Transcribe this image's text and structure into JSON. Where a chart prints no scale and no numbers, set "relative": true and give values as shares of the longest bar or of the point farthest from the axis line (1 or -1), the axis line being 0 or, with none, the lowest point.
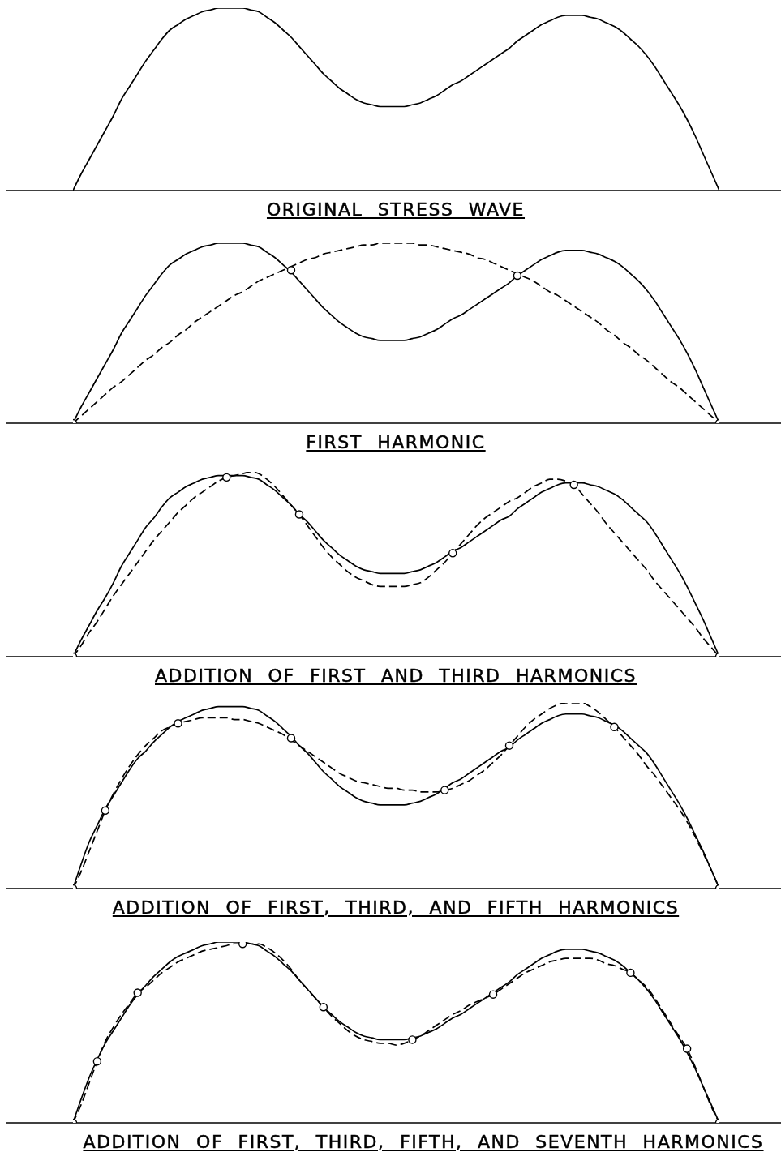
{
  "chart_data": [
    {
      "type": "line",
      "relative": true,
      "title": "ORIGINAL STRESS WAVE",
      "categories": [
        null,
        null,
        null,
        null,
        null,
        null,
        null,
        null,
        null,
        null,
        null,
        null,
        null,
        null,
        null,
        null,
        null,
        null,
        null,
        null,
        null,
        null,
        null,
        null,
        null,
        null,
        null,
        null,
        null,
        null,
        null,
        null,
        null,
        null,
        null,
        null,
        null,
        null,
        null,
        null,
        null,
        null,
        null,
        null,
        null,
        null,
        null,
        null,
        null,
        null,
        null,
        null,
        null,
        null,
        null,
        null,
        null,
        null,
        null,
        null,
        null,
        null,
        null,
        null,
        null,
        null,
        null,
        null,
        null,
        null,
        null,
        null,
        null,
        null,
        null,
        null,
        null,
        null,
        null,
        null,
        null
      ],
      "series": [
        {
          "line_style": "solid",
          "color": "#000000",
          "values": [
            0,
            0.09,
            0.17,
            0.25,
            0.33,
            0.41,
            0.5,
            0.57,
            0.64,
            0.71,
            0.77,
            0.83,
            0.88,
            0.91,
            0.94,
            0.96,
            0.98,
            0.99,
            1,
            1,
            1,
            1,
            0.99,
            0.98,
            0.95,
            0.92,
            0.88,
            0.84,
            0.79,
            0.74,
            0.69,
            0.64,
            0.6,
            0.56,
            0.53,
            0.5,
            0.48,
            0.47,
            0.46,
            0.46,
            0.46,
            0.46,
            0.47,
            0.48,
            0.5,
            0.52,
            0.55,
            0.58,
            0.6,
            0.63,
            0.66,
            0.69,
            0.72,
            0.75,
            0.78,
            0.82,
            0.85,
            0.88,
            0.91,
            0.93,
            0.95,
            0.96,
            0.96,
            0.96,
            0.95,
            0.94,
            0.92,
            0.9,
            0.87,
            0.83,
            0.79,
            0.74,
            0.68,
            0.61,
            0.54,
            0.47,
            0.39,
            0.3,
            0.2,
            0.1,
            0
          ]
        }
      ]
    },
    {
      "type": "line",
      "relative": true,
      "title": "FIRST HARMONIC",
      "categories": [
        null,
        null,
        null,
        null,
        null,
        null,
        null,
        null,
        null,
        null,
        null,
        null,
        null,
        null,
        null,
        null,
        null,
        null,
        null,
        null,
        null,
        null,
        null,
        null,
        null,
        null,
        null,
        null,
        null,
        null,
        null,
        null,
        null,
        null,
        null,
        null,
        null,
        null,
        null,
        null,
        null,
        null,
        null,
        null,
        null,
        null,
        null,
        null,
        null,
        null,
        null,
        null,
        null,
        null,
        null,
        null,
        null,
        null,
        null,
        null,
        null,
        null,
        null,
        null,
        null,
        null,
        null,
        null,
        null,
        null,
        null,
        null,
        null,
        null,
        null,
        null,
        null,
        null,
        null,
        null,
        null
      ],
      "series": [
        {
          "line_style": "solid",
          "color": "#000000",
          "values": [
            0,
            0.09,
            0.17,
            0.25,
            0.33,
            0.41,
            0.5,
            0.57,
            0.64,
            0.71,
            0.77,
            0.83,
            0.88,
            0.91,
            0.94,
            0.96,
            0.98,
            0.99,
            1,
            1,
            1,
            1,
            0.99,
            0.98,
            0.95,
            0.92,
            0.88,
            0.84,
            0.79,
            0.74,
            0.69,
            0.64,
            0.6,
            0.56,
            0.53,
            0.5,
            0.48,
            0.47,
            0.46,
            0.46,
            0.46,
            0.46,
            0.47,
            0.48,
            0.5,
            0.52,
            0.55,
            0.58,
            0.6,
            0.63,
            0.66,
            0.69,
            0.72,
            0.75,
            0.78,
            0.82,
            0.85,
            0.88,
            0.91,
            0.93,
            0.95,
            0.96,
            0.96,
            0.96,
            0.95,
            0.94,
            0.92,
            0.9,
            0.87,
            0.83,
            0.79,
            0.74,
            0.68,
            0.61,
            0.54,
            0.47,
            0.39,
            0.3,
            0.2,
            0.1,
            0
          ]
        },
        {
          "line_style": "dashed",
          "color": "#000000",
          "values": [
            0,
            0.04,
            0.08,
            0.12,
            0.16,
            0.2,
            0.23,
            0.27,
            0.31,
            0.35,
            0.38,
            0.42,
            0.45,
            0.49,
            0.52,
            0.56,
            0.59,
            0.62,
            0.65,
            0.68,
            0.71,
            0.73,
            0.76,
            0.79,
            0.81,
            0.83,
            0.85,
            0.87,
            0.89,
            0.91,
            0.92,
            0.94,
            0.95,
            0.96,
            0.97,
            0.98,
            0.99,
            0.99,
            1,
            1,
            1,
            1,
            1,
            0.99,
            0.99,
            0.98,
            0.97,
            0.96,
            0.95,
            0.94,
            0.92,
            0.91,
            0.89,
            0.87,
            0.85,
            0.83,
            0.81,
            0.79,
            0.76,
            0.73,
            0.71,
            0.68,
            0.65,
            0.62,
            0.59,
            0.56,
            0.52,
            0.49,
            0.45,
            0.42,
            0.38,
            0.35,
            0.31,
            0.27,
            0.23,
            0.2,
            0.16,
            0.12,
            0.08,
            0.04,
            0
          ]
        },
        {
          "type": "scatter",
          "marker": "circle",
          "color": "#000000",
          "values": [
            0,
            null,
            null,
            null,
            null,
            null,
            null,
            null,
            null,
            null,
            null,
            null,
            null,
            null,
            null,
            null,
            null,
            null,
            null,
            null,
            null,
            null,
            null,
            null,
            null,
            null,
            null,
            0.85,
            null,
            null,
            null,
            null,
            null,
            null,
            null,
            null,
            null,
            null,
            null,
            null,
            null,
            null,
            null,
            null,
            null,
            null,
            null,
            null,
            null,
            null,
            null,
            null,
            null,
            null,
            null,
            0.82,
            null,
            null,
            null,
            null,
            null,
            null,
            null,
            null,
            null,
            null,
            null,
            null,
            null,
            null,
            null,
            null,
            null,
            null,
            null,
            null,
            null,
            null,
            null,
            null,
            0
          ]
        }
      ]
    },
    {
      "type": "line",
      "relative": true,
      "title": "ADDITION OF FIRST AND THIRD HARMONICS",
      "categories": [
        null,
        null,
        null,
        null,
        null,
        null,
        null,
        null,
        null,
        null,
        null,
        null,
        null,
        null,
        null,
        null,
        null,
        null,
        null,
        null,
        null,
        null,
        null,
        null,
        null,
        null,
        null,
        null,
        null,
        null,
        null,
        null,
        null,
        null,
        null,
        null,
        null,
        null,
        null,
        null,
        null,
        null,
        null,
        null,
        null,
        null,
        null,
        null,
        null,
        null,
        null,
        null,
        null,
        null,
        null,
        null,
        null,
        null,
        null,
        null,
        null,
        null,
        null,
        null,
        null,
        null,
        null,
        null,
        null,
        null,
        null,
        null,
        null,
        null,
        null,
        null,
        null,
        null,
        null,
        null,
        null
      ],
      "series": [
        {
          "line_style": "solid",
          "color": "#000000",
          "values": [
            0,
            0.09,
            0.17,
            0.25,
            0.32,
            0.4,
            0.49,
            0.56,
            0.63,
            0.7,
            0.75,
            0.81,
            0.86,
            0.89,
            0.92,
            0.94,
            0.96,
            0.97,
            0.98,
            0.98,
            0.98,
            0.98,
            0.97,
            0.96,
            0.93,
            0.9,
            0.86,
            0.82,
            0.77,
            0.73,
            0.68,
            0.63,
            0.59,
            0.55,
            0.52,
            0.49,
            0.47,
            0.46,
            0.45,
            0.45,
            0.45,
            0.45,
            0.46,
            0.47,
            0.49,
            0.51,
            0.54,
            0.57,
            0.59,
            0.62,
            0.65,
            0.68,
            0.71,
            0.74,
            0.76,
            0.8,
            0.83,
            0.86,
            0.89,
            0.91,
            0.93,
            0.94,
            0.94,
            0.94,
            0.93,
            0.92,
            0.9,
            0.88,
            0.85,
            0.81,
            0.77,
            0.73,
            0.67,
            0.6,
            0.53,
            0.46,
            0.38,
            0.29,
            0.2,
            0.1,
            0
          ]
        },
        {
          "line_style": "dashed",
          "color": "#000000",
          "values": [
            0,
            0.06,
            0.13,
            0.19,
            0.26,
            0.33,
            0.39,
            0.45,
            0.51,
            0.57,
            0.63,
            0.68,
            0.73,
            0.78,
            0.82,
            0.86,
            0.89,
            0.92,
            0.95,
            0.97,
            0.98,
            0.99,
            1,
            0.99,
            0.96,
            0.92,
            0.87,
            0.82,
            0.77,
            0.71,
            0.65,
            0.59,
            0.54,
            0.5,
            0.46,
            0.43,
            0.41,
            0.39,
            0.38,
            0.38,
            0.38,
            0.38,
            0.39,
            0.4,
            0.43,
            0.47,
            0.51,
            0.56,
            0.61,
            0.66,
            0.71,
            0.75,
            0.78,
            0.81,
            0.84,
            0.86,
            0.89,
            0.92,
            0.94,
            0.96,
            0.96,
            0.95,
            0.93,
            0.88,
            0.83,
            0.78,
            0.72,
            0.67,
            0.62,
            0.57,
            0.52,
            0.47,
            0.41,
            0.36,
            0.31,
            0.26,
            0.21,
            0.16,
            0.1,
            0.05,
            0
          ]
        },
        {
          "type": "scatter",
          "marker": "circle",
          "color": "#000000",
          "values": [
            0,
            null,
            null,
            null,
            null,
            null,
            null,
            null,
            null,
            null,
            null,
            null,
            null,
            null,
            null,
            null,
            null,
            null,
            null,
            0.97,
            null,
            null,
            null,
            null,
            null,
            null,
            null,
            null,
            0.77,
            null,
            null,
            null,
            null,
            null,
            null,
            null,
            null,
            null,
            null,
            null,
            null,
            null,
            null,
            null,
            null,
            null,
            null,
            0.56,
            null,
            null,
            null,
            null,
            null,
            null,
            null,
            null,
            null,
            null,
            null,
            null,
            null,
            null,
            0.93,
            null,
            null,
            null,
            null,
            null,
            null,
            null,
            null,
            null,
            null,
            null,
            null,
            null,
            null,
            null,
            null,
            null,
            0
          ]
        }
      ]
    },
    {
      "type": "line",
      "relative": true,
      "title": "ADDITION OF FIRST, THIRD, AND FIFTH HARMONICS",
      "categories": [
        null,
        null,
        null,
        null,
        null,
        null,
        null,
        null,
        null,
        null,
        null,
        null,
        null,
        null,
        null,
        null,
        null,
        null,
        null,
        null,
        null,
        null,
        null,
        null,
        null,
        null,
        null,
        null,
        null,
        null,
        null,
        null,
        null,
        null,
        null,
        null,
        null,
        null,
        null,
        null,
        null,
        null,
        null,
        null,
        null,
        null,
        null,
        null,
        null,
        null,
        null,
        null,
        null,
        null,
        null,
        null,
        null,
        null,
        null,
        null,
        null,
        null,
        null,
        null,
        null,
        null,
        null,
        null,
        null,
        null,
        null,
        null,
        null,
        null,
        null,
        null,
        null,
        null,
        null,
        null,
        null
      ],
      "series": [
        {
          "line_style": "solid",
          "color": "#000000",
          "values": [
            0,
            0.13,
            0.25,
            0.34,
            0.43,
            0.5,
            0.57,
            0.64,
            0.7,
            0.74,
            0.79,
            0.83,
            0.87,
            0.9,
            0.92,
            0.94,
            0.96,
            0.97,
            0.98,
            0.98,
            0.98,
            0.98,
            0.97,
            0.96,
            0.93,
            0.9,
            0.86,
            0.82,
            0.77,
            0.73,
            0.68,
            0.63,
            0.59,
            0.55,
            0.52,
            0.49,
            0.47,
            0.46,
            0.45,
            0.45,
            0.45,
            0.45,
            0.46,
            0.47,
            0.49,
            0.51,
            0.54,
            0.57,
            0.59,
            0.62,
            0.65,
            0.68,
            0.71,
            0.74,
            0.76,
            0.8,
            0.83,
            0.86,
            0.89,
            0.91,
            0.93,
            0.94,
            0.94,
            0.94,
            0.93,
            0.92,
            0.9,
            0.88,
            0.85,
            0.81,
            0.77,
            0.73,
            0.67,
            0.6,
            0.53,
            0.46,
            0.38,
            0.29,
            0.2,
            0.1,
            0
          ]
        },
        {
          "line_style": "dashed",
          "color": "#000000",
          "values": [
            0,
            0.09,
            0.2,
            0.31,
            0.42,
            0.51,
            0.59,
            0.66,
            0.72,
            0.77,
            0.81,
            0.85,
            0.87,
            0.89,
            0.9,
            0.91,
            0.92,
            0.92,
            0.92,
            0.92,
            0.91,
            0.91,
            0.9,
            0.89,
            0.87,
            0.85,
            0.83,
            0.8,
            0.77,
            0.74,
            0.71,
            0.68,
            0.65,
            0.62,
            0.6,
            0.58,
            0.57,
            0.56,
            0.55,
            0.54,
            0.54,
            0.53,
            0.53,
            0.52,
            0.52,
            0.52,
            0.53,
            0.54,
            0.56,
            0.58,
            0.61,
            0.64,
            0.68,
            0.72,
            0.77,
            0.82,
            0.87,
            0.91,
            0.94,
            0.97,
            0.99,
            1,
            1,
            1,
            0.98,
            0.95,
            0.91,
            0.87,
            0.82,
            0.77,
            0.72,
            0.66,
            0.61,
            0.55,
            0.49,
            0.43,
            0.36,
            0.28,
            0.19,
            0.1,
            0
          ]
        },
        {
          "type": "scatter",
          "marker": "circle",
          "color": "#000000",
          "values": [
            0,
            null,
            null,
            null,
            0.42,
            null,
            null,
            null,
            null,
            null,
            null,
            null,
            null,
            0.89,
            null,
            null,
            null,
            null,
            null,
            null,
            null,
            null,
            null,
            null,
            null,
            null,
            null,
            0.81,
            null,
            null,
            null,
            null,
            null,
            null,
            null,
            null,
            null,
            null,
            null,
            null,
            null,
            null,
            null,
            null,
            null,
            null,
            0.53,
            null,
            null,
            null,
            null,
            null,
            null,
            null,
            0.77,
            null,
            null,
            null,
            null,
            null,
            null,
            null,
            null,
            null,
            null,
            null,
            null,
            0.87,
            null,
            null,
            null,
            null,
            null,
            null,
            null,
            null,
            null,
            null,
            null,
            null,
            0
          ]
        }
      ]
    },
    {
      "type": "line",
      "relative": true,
      "title": "ADDITION OF FIRST, THIRD, FIFTH, AND SEVENTH HARMONICS",
      "categories": [
        null,
        null,
        null,
        null,
        null,
        null,
        null,
        null,
        null,
        null,
        null,
        null,
        null,
        null,
        null,
        null,
        null,
        null,
        null,
        null,
        null,
        null,
        null,
        null,
        null,
        null,
        null,
        null,
        null,
        null,
        null,
        null,
        null,
        null,
        null,
        null,
        null,
        null,
        null,
        null,
        null,
        null,
        null,
        null,
        null,
        null,
        null,
        null,
        null,
        null,
        null,
        null,
        null,
        null,
        null,
        null,
        null,
        null,
        null,
        null,
        null,
        null,
        null,
        null,
        null,
        null,
        null,
        null,
        null,
        null,
        null,
        null,
        null,
        null,
        null,
        null,
        null,
        null,
        null,
        null,
        null
      ],
      "series": [
        {
          "line_style": "solid",
          "color": "#000000",
          "values": [
            0,
            0.13,
            0.25,
            0.35,
            0.44,
            0.51,
            0.58,
            0.65,
            0.71,
            0.76,
            0.81,
            0.85,
            0.89,
            0.92,
            0.94,
            0.96,
            0.98,
            0.99,
            1,
            1,
            1,
            1,
            0.99,
            0.98,
            0.95,
            0.92,
            0.88,
            0.84,
            0.79,
            0.74,
            0.69,
            0.64,
            0.6,
            0.56,
            0.53,
            0.5,
            0.48,
            0.47,
            0.46,
            0.46,
            0.46,
            0.46,
            0.47,
            0.48,
            0.5,
            0.52,
            0.55,
            0.58,
            0.6,
            0.63,
            0.66,
            0.69,
            0.72,
            0.75,
            0.78,
            0.82,
            0.85,
            0.88,
            0.91,
            0.93,
            0.95,
            0.96,
            0.96,
            0.96,
            0.95,
            0.94,
            0.92,
            0.9,
            0.87,
            0.83,
            0.79,
            0.74,
            0.68,
            0.61,
            0.54,
            0.47,
            0.39,
            0.3,
            0.2,
            0.1,
            0
          ]
        },
        {
          "line_style": "dashed",
          "color": "#000000",
          "values": [
            0,
            0.1,
            0.22,
            0.34,
            0.45,
            0.53,
            0.6,
            0.66,
            0.72,
            0.75,
            0.79,
            0.83,
            0.86,
            0.89,
            0.91,
            0.93,
            0.95,
            0.96,
            0.97,
            0.98,
            0.99,
            0.99,
            0.99,
            0.99,
            0.97,
            0.94,
            0.9,
            0.85,
            0.79,
            0.74,
            0.69,
            0.64,
            0.59,
            0.55,
            0.51,
            0.48,
            0.46,
            0.45,
            0.44,
            0.44,
            0.43,
            0.44,
            0.46,
            0.48,
            0.51,
            0.54,
            0.57,
            0.6,
            0.62,
            0.65,
            0.67,
            0.69,
            0.71,
            0.74,
            0.77,
            0.8,
            0.83,
            0.85,
            0.87,
            0.89,
            0.9,
            0.91,
            0.91,
            0.91,
            0.91,
            0.9,
            0.88,
            0.87,
            0.85,
            0.83,
            0.79,
            0.75,
            0.69,
            0.62,
            0.55,
            0.48,
            0.41,
            0.31,
            0.2,
            0.09,
            0
          ]
        },
        {
          "type": "scatter",
          "marker": "circle",
          "color": "#000000",
          "values": [
            0,
            null,
            null,
            0.34,
            null,
            null,
            null,
            null,
            0.72,
            null,
            null,
            null,
            null,
            null,
            null,
            null,
            null,
            null,
            null,
            null,
            null,
            0.99,
            null,
            null,
            null,
            null,
            null,
            null,
            null,
            null,
            null,
            0.64,
            null,
            null,
            null,
            null,
            null,
            null,
            null,
            null,
            null,
            null,
            0.46,
            null,
            null,
            null,
            null,
            null,
            null,
            null,
            null,
            null,
            0.71,
            null,
            null,
            null,
            null,
            null,
            null,
            null,
            null,
            null,
            null,
            null,
            null,
            null,
            null,
            null,
            null,
            0.83,
            null,
            null,
            null,
            null,
            null,
            null,
            0.41,
            null,
            null,
            null,
            0
          ]
        }
      ]
    }
  ]
}
